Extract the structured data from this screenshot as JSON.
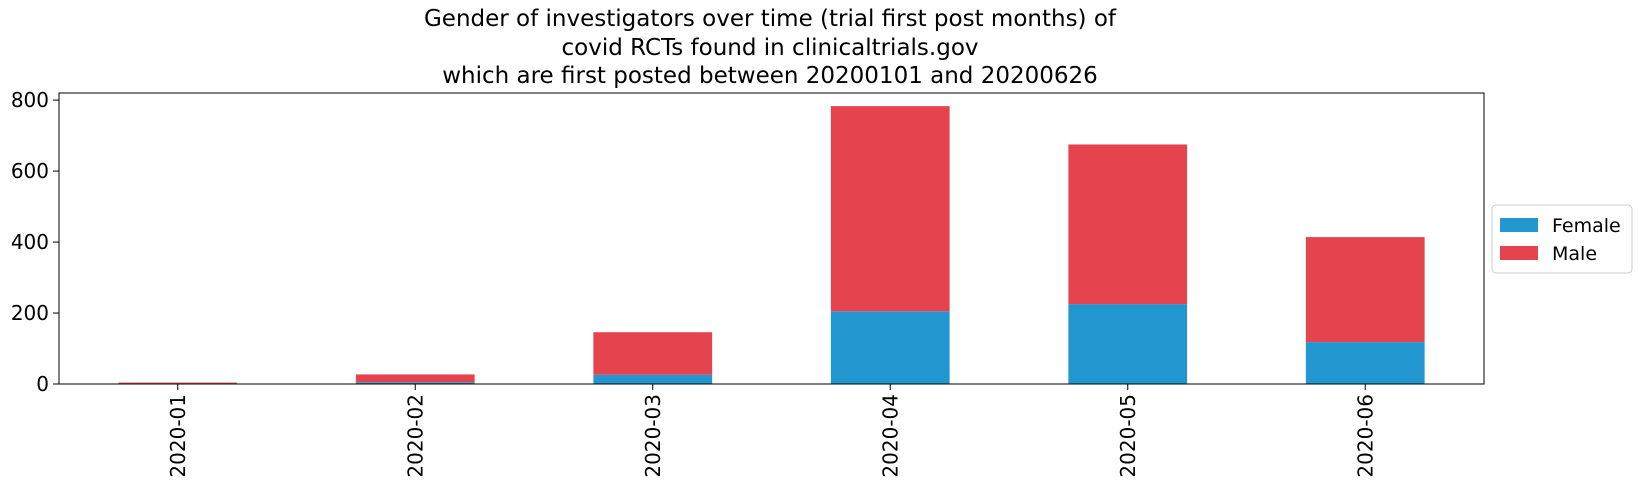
{
  "chart_data": {
    "type": "bar",
    "stacked": true,
    "title_lines": [
      "Gender of investigators over time (trial first post months) of",
      "covid RCTs found in clinicaltrials.gov",
      "which are first posted between 20200101 and 20200626"
    ],
    "categories": [
      "2020-01",
      "2020-02",
      "2020-03",
      "2020-04",
      "2020-05",
      "2020-06"
    ],
    "series": [
      {
        "name": "Female",
        "color": "#2196cf",
        "values": [
          1,
          5,
          26,
          205,
          225,
          118
        ]
      },
      {
        "name": "Male",
        "color": "#e5444f",
        "values": [
          3,
          22,
          120,
          578,
          450,
          296
        ]
      }
    ],
    "ylim": [
      0,
      820
    ],
    "yticks": [
      0,
      200,
      400,
      600,
      800
    ],
    "grid": false,
    "legend_position": "right"
  }
}
